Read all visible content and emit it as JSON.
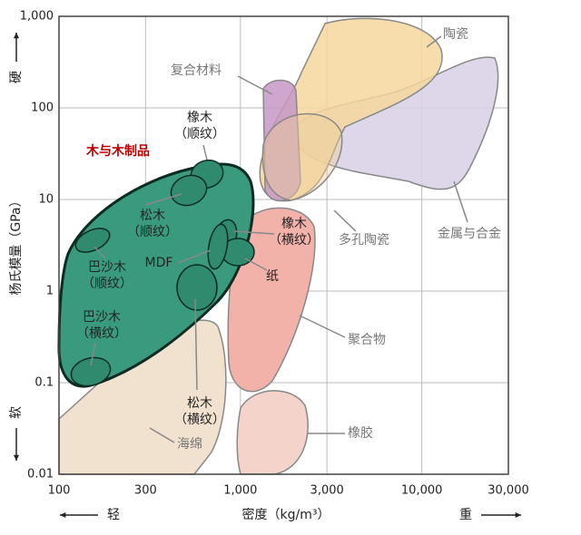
{
  "chart_data": {
    "type": "region",
    "xlabel": "密度（kg/m³）",
    "ylabel": "杨氏模量（GPa）",
    "xscale": "log",
    "yscale": "log",
    "xlim": [
      100,
      30000
    ],
    "ylim": [
      0.01,
      1000
    ],
    "xticks": [
      100,
      300,
      {
        "value": 1000,
        "label": "1,000"
      },
      {
        "value": 3000,
        "label": "3,000"
      },
      {
        "value": 10000,
        "label": "10,000"
      },
      {
        "value": 30000,
        "label": "30,000"
      }
    ],
    "yticks": [
      0.01,
      0.1,
      1,
      10,
      100,
      {
        "value": 1000,
        "label": "1,000"
      }
    ],
    "grid": true,
    "hints": {
      "hard": "硬",
      "soft": "软",
      "light": "轻",
      "heavy": "重"
    },
    "regions": [
      {
        "label": [
          "海绵"
        ],
        "color": "#f1e2cf"
      },
      {
        "label": [
          "橡胶"
        ],
        "color": "#f4d3ca"
      },
      {
        "label": [
          "聚合物"
        ],
        "color": "#f2b2aa"
      },
      {
        "label": [
          "金属与合金"
        ],
        "color": "#d8d0e6"
      },
      {
        "label": [
          "陶瓷"
        ],
        "color": "#f6d79c"
      },
      {
        "label": [
          "复合材料"
        ],
        "color": "#c596c6"
      },
      {
        "label": [
          "多孔陶瓷"
        ],
        "color": "#eecf9c"
      },
      {
        "label": [
          "木与木制品"
        ],
        "color": "#3a9a7d",
        "label_color": "#c00000"
      },
      {
        "label": [
          "橡木",
          "（顺纹）"
        ],
        "color": "#2f8a6e"
      },
      {
        "label": [
          "松木",
          "（顺纹）"
        ],
        "color": "#2f8a6e"
      },
      {
        "label": [
          "巴沙木",
          "（顺纹）"
        ],
        "color": "#2f8a6e"
      },
      {
        "label": [
          "MDF"
        ],
        "color": "#2f8a6e"
      },
      {
        "label": [
          "巴沙木",
          "（横纹）"
        ],
        "color": "#2f8a6e"
      },
      {
        "label": [
          "橡木",
          "（横纹）"
        ],
        "color": "#2f8a6e"
      },
      {
        "label": [
          "纸"
        ],
        "color": "#2f8a6e"
      },
      {
        "label": [
          "松木",
          "（横纹）"
        ],
        "color": "#2f8a6e"
      }
    ]
  }
}
